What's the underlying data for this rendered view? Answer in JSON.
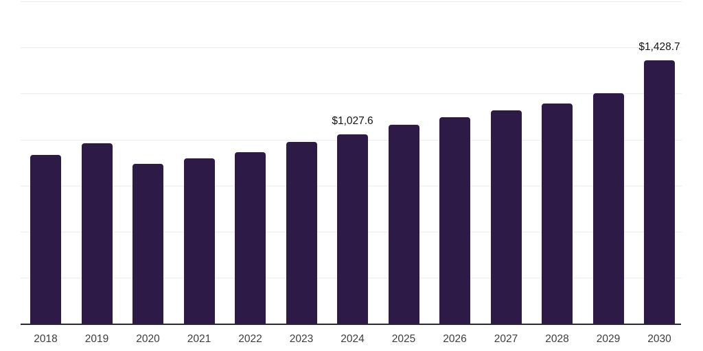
{
  "chart_data": {
    "type": "bar",
    "title": "",
    "xlabel": "",
    "ylabel": "",
    "categories": [
      "2018",
      "2019",
      "2020",
      "2021",
      "2022",
      "2023",
      "2024",
      "2025",
      "2026",
      "2027",
      "2028",
      "2029",
      "2030"
    ],
    "values": [
      916,
      980,
      868,
      898,
      933,
      989,
      1027.6,
      1080,
      1120,
      1158,
      1194,
      1253,
      1428.7
    ],
    "data_labels": [
      "",
      "",
      "",
      "",
      "",
      "",
      "$1,027.6",
      "",
      "",
      "",
      "",
      "",
      "$1,428.7"
    ],
    "ylim": [
      0,
      1750
    ],
    "gridline_step": 250,
    "grid": "horizontal",
    "legend_position": "none",
    "bar_color": "#2e1a47",
    "gridline_color": "#ededed",
    "axis_line_color": "#2a2433",
    "tick_label_color": "#3d3d3d",
    "data_label_color": "#141414",
    "background_color": "#ffffff"
  }
}
